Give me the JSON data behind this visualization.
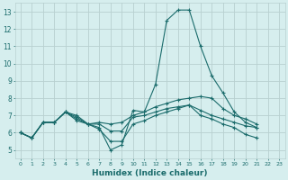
{
  "xlabel": "Humidex (Indice chaleur)",
  "ylabel": "",
  "background_color": "#d6eeee",
  "grid_color": "#b8d0d0",
  "line_color": "#1a6b6b",
  "xlim": [
    -0.5,
    23.5
  ],
  "ylim": [
    4.5,
    13.5
  ],
  "xticks": [
    0,
    1,
    2,
    3,
    4,
    5,
    6,
    7,
    8,
    9,
    10,
    11,
    12,
    13,
    14,
    15,
    16,
    17,
    18,
    19,
    20,
    21,
    22,
    23
  ],
  "yticks": [
    5,
    6,
    7,
    8,
    9,
    10,
    11,
    12,
    13
  ],
  "series": [
    [
      6.0,
      5.7,
      6.6,
      6.6,
      7.2,
      7.0,
      6.5,
      6.3,
      5.0,
      5.3,
      7.3,
      7.2,
      8.8,
      12.5,
      13.1,
      13.1,
      11.0,
      9.3,
      8.3,
      7.2,
      6.6,
      6.3,
      null,
      null
    ],
    [
      6.0,
      5.7,
      6.6,
      6.6,
      7.2,
      6.7,
      6.5,
      6.6,
      6.5,
      6.6,
      7.0,
      7.2,
      7.5,
      7.7,
      7.9,
      8.0,
      8.1,
      8.0,
      7.4,
      7.0,
      6.8,
      6.5,
      null,
      null
    ],
    [
      6.0,
      5.7,
      6.6,
      6.6,
      7.2,
      6.8,
      6.5,
      6.5,
      6.1,
      6.1,
      6.9,
      7.0,
      7.2,
      7.4,
      7.5,
      7.6,
      7.3,
      7.0,
      6.8,
      6.6,
      6.4,
      6.3,
      null,
      null
    ],
    [
      6.0,
      5.7,
      6.6,
      6.6,
      7.2,
      6.9,
      6.5,
      6.2,
      5.5,
      5.5,
      6.5,
      6.7,
      7.0,
      7.2,
      7.4,
      7.6,
      7.0,
      6.8,
      6.5,
      6.3,
      5.9,
      5.7,
      null,
      null
    ]
  ]
}
